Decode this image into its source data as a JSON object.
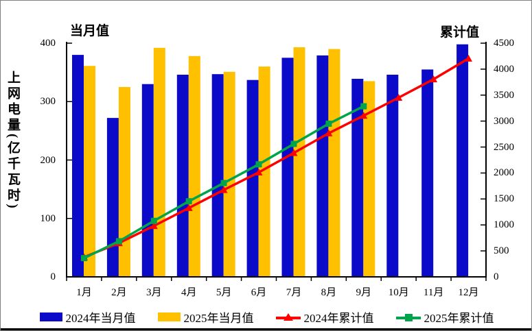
{
  "colors": {
    "bar_2024": "#0a0ac8",
    "bar_2025": "#ffc000",
    "line_2024": "#ff0000",
    "line_2025": "#00a44a",
    "axis": "#000000",
    "frame_border": "#808080"
  },
  "chart_data": {
    "type": "combo-bar-line",
    "y_axis_title": "上网电量(亿千瓦时)",
    "left_axis": {
      "label": "当月值",
      "min": 0,
      "max": 400,
      "ticks": [
        0,
        100,
        200,
        300,
        400
      ]
    },
    "right_axis": {
      "label": "累计值",
      "min": 0,
      "max": 4500,
      "ticks": [
        0,
        500,
        1000,
        1500,
        2000,
        2500,
        3000,
        3500,
        4000,
        4500
      ]
    },
    "categories": [
      "1月",
      "2月",
      "3月",
      "4月",
      "5月",
      "6月",
      "7月",
      "8月",
      "9月",
      "10月",
      "11月",
      "12月"
    ],
    "series": [
      {
        "name": "2024年当月值",
        "type": "bar",
        "axis": "left",
        "color": "#0a0ac8",
        "values": [
          380,
          272,
          330,
          346,
          347,
          337,
          375,
          379,
          339,
          346,
          355,
          398
        ]
      },
      {
        "name": "2025年当月值",
        "type": "bar",
        "axis": "left",
        "color": "#ffc000",
        "values": [
          361,
          325,
          392,
          378,
          351,
          360,
          393,
          390,
          335
        ]
      },
      {
        "name": "2024年累计值",
        "type": "line",
        "axis": "right",
        "color": "#ff0000",
        "marker": "triangle",
        "values": [
          380,
          652,
          982,
          1328,
          1675,
          2012,
          2387,
          2766,
          3105,
          3451,
          3806,
          4204
        ]
      },
      {
        "name": "2025年累计值",
        "type": "line",
        "axis": "right",
        "color": "#00a44a",
        "marker": "square",
        "values": [
          361,
          686,
          1078,
          1456,
          1807,
          2167,
          2560,
          2950,
          3285
        ]
      }
    ],
    "legend_position": "bottom",
    "grid": false
  }
}
